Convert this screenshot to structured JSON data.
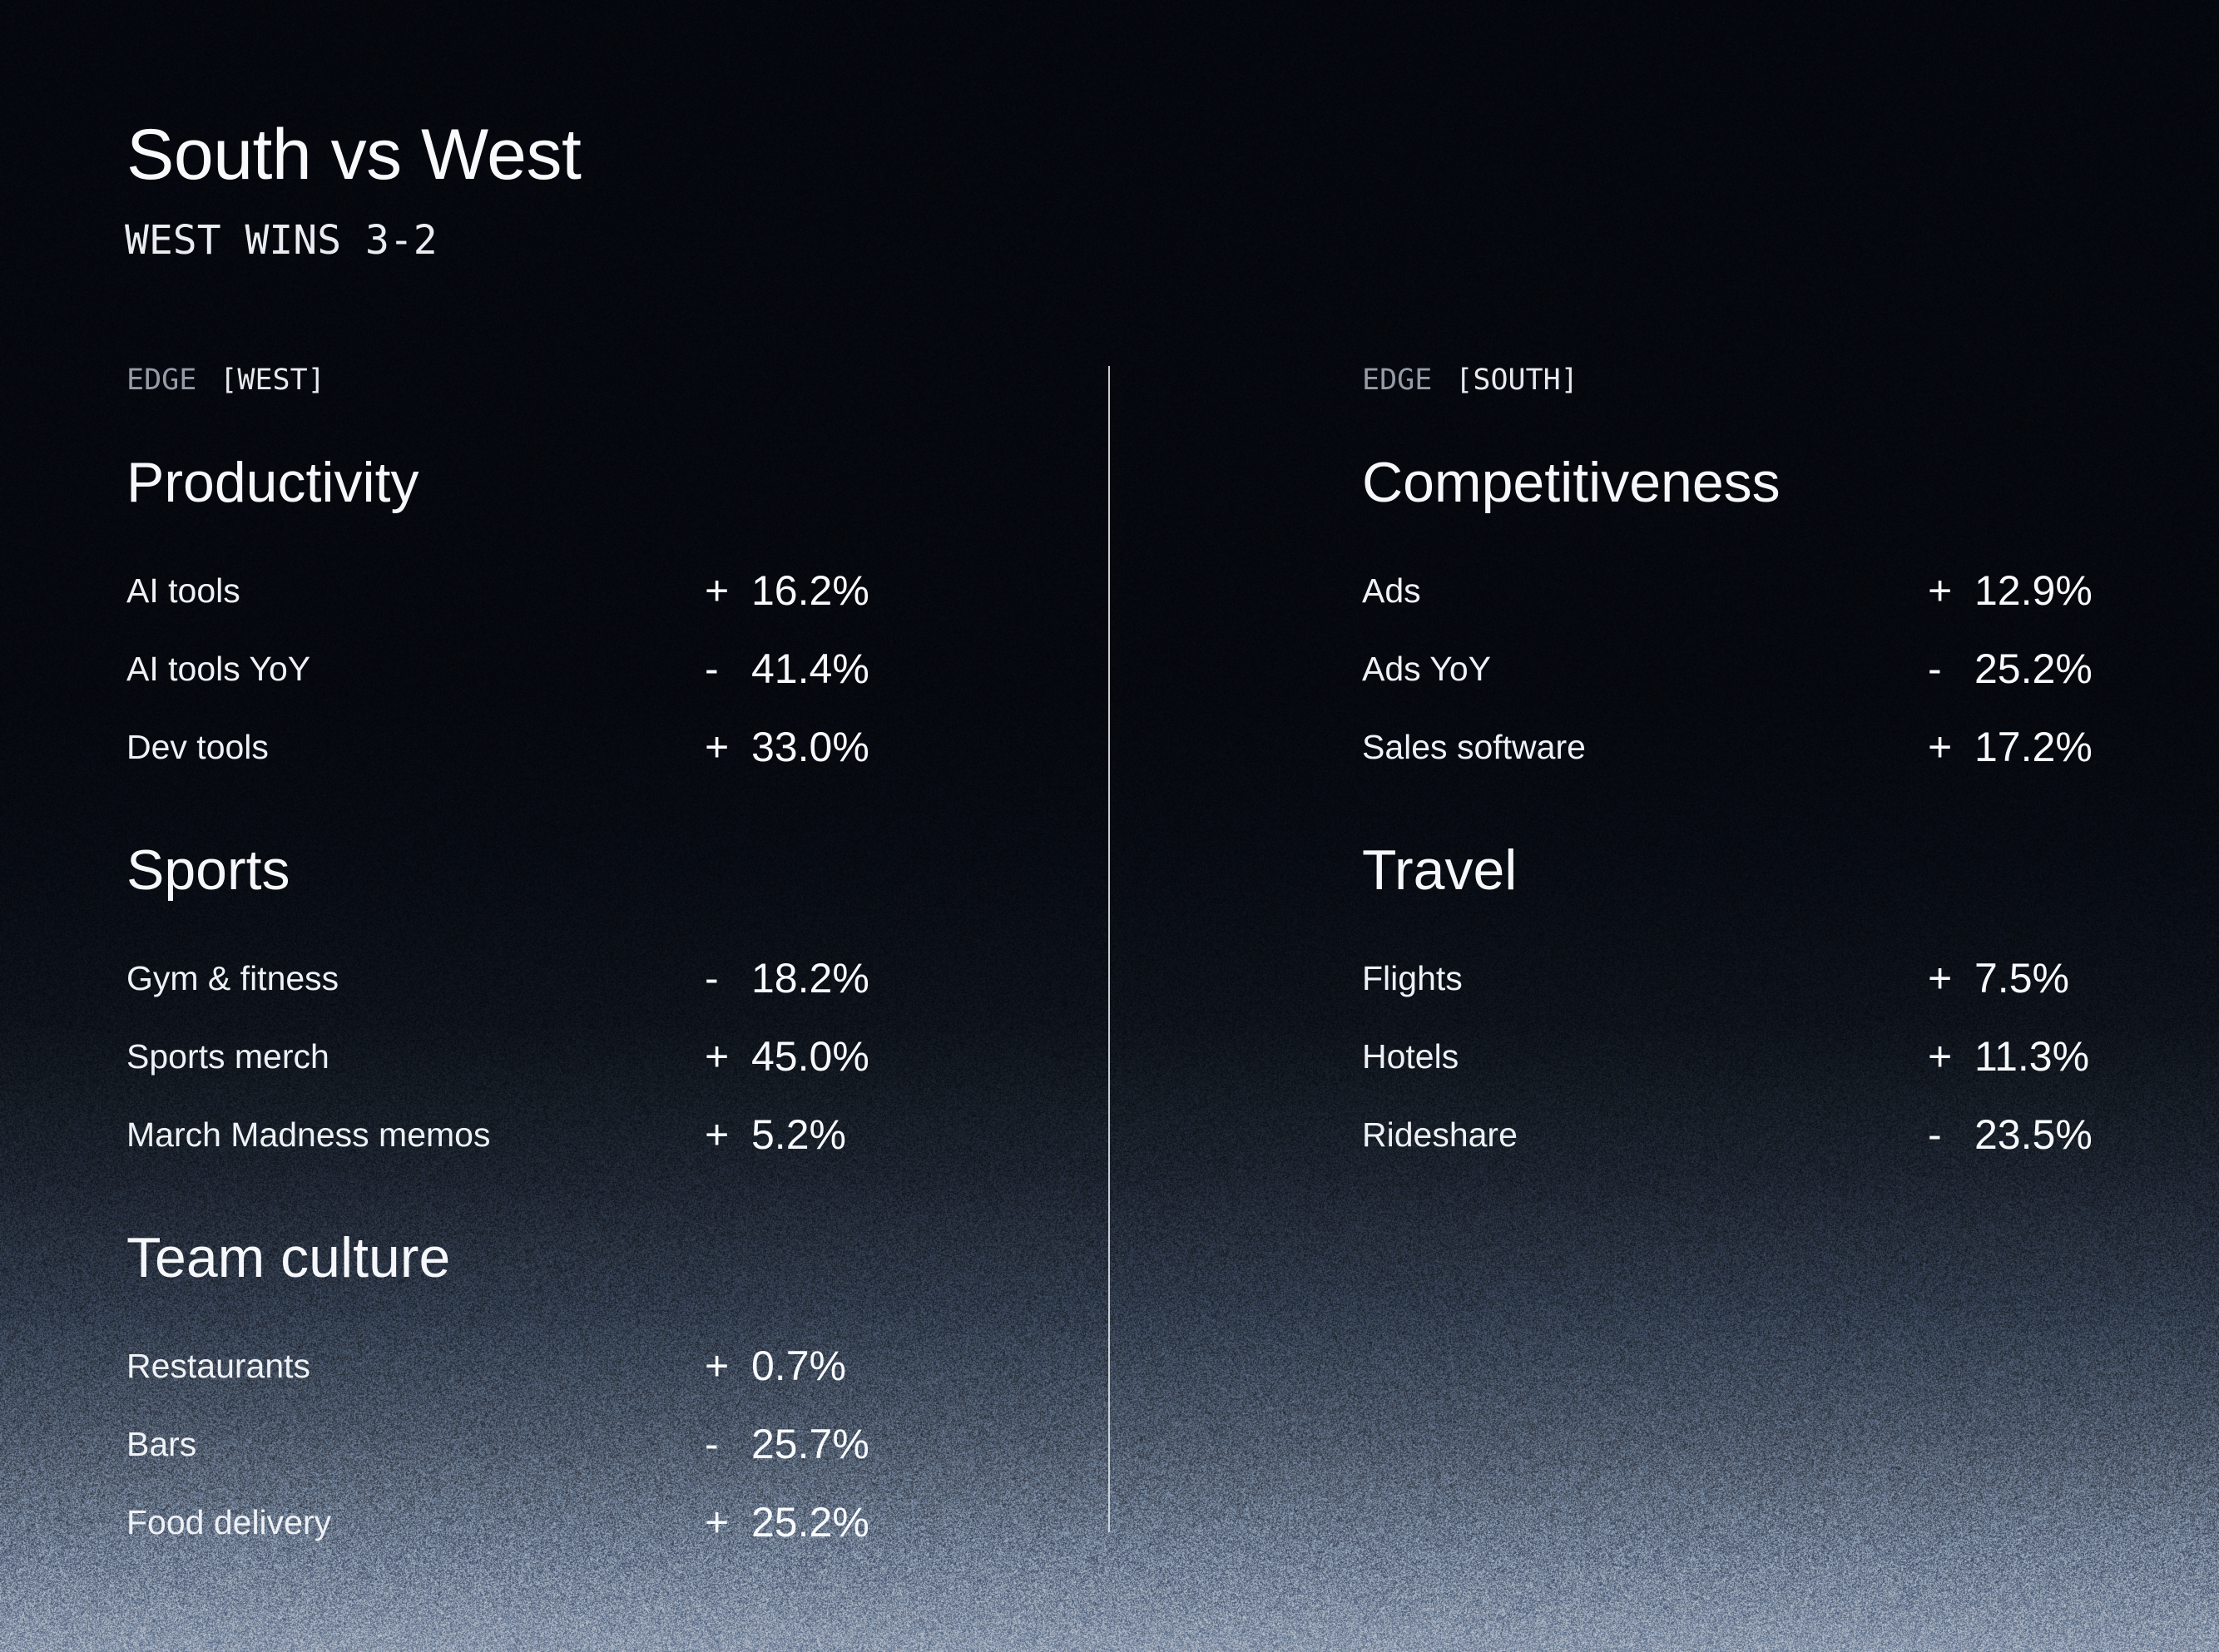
{
  "page": {
    "title": "South vs West",
    "subtitle": "WEST WINS 3-2"
  },
  "colors": {
    "background_top": "#04070d",
    "background_bottom": "#8c99ad",
    "text_primary": "#f5f7fa",
    "text_muted": "#969ca6",
    "divider": "#d9dde1"
  },
  "columns": [
    {
      "edge": {
        "prefix": "EDGE",
        "team": "[WEST]"
      },
      "sections": [
        {
          "heading": "Productivity",
          "rows": [
            {
              "label": "AI tools",
              "sign": "+",
              "value": "16.2%"
            },
            {
              "label": "AI tools YoY",
              "sign": "-",
              "value": "41.4%"
            },
            {
              "label": "Dev tools",
              "sign": "+",
              "value": "33.0%"
            }
          ]
        },
        {
          "heading": "Sports",
          "rows": [
            {
              "label": "Gym & fitness",
              "sign": "-",
              "value": "18.2%"
            },
            {
              "label": "Sports merch",
              "sign": "+",
              "value": "45.0%"
            },
            {
              "label": "March Madness memos",
              "sign": "+",
              "value": "5.2%"
            }
          ]
        },
        {
          "heading": "Team culture",
          "rows": [
            {
              "label": "Restaurants",
              "sign": "+",
              "value": "0.7%"
            },
            {
              "label": "Bars",
              "sign": "-",
              "value": "25.7%"
            },
            {
              "label": "Food delivery",
              "sign": "+",
              "value": "25.2%"
            }
          ]
        }
      ]
    },
    {
      "edge": {
        "prefix": "EDGE",
        "team": "[SOUTH]"
      },
      "sections": [
        {
          "heading": "Competitiveness",
          "rows": [
            {
              "label": "Ads",
              "sign": "+",
              "value": "12.9%"
            },
            {
              "label": "Ads YoY",
              "sign": "-",
              "value": "25.2%"
            },
            {
              "label": "Sales software",
              "sign": "+",
              "value": "17.2%"
            }
          ]
        },
        {
          "heading": "Travel",
          "rows": [
            {
              "label": "Flights",
              "sign": "+",
              "value": "7.5%"
            },
            {
              "label": "Hotels",
              "sign": "+",
              "value": "11.3%"
            },
            {
              "label": "Rideshare",
              "sign": "-",
              "value": "23.5%"
            }
          ]
        }
      ]
    }
  ]
}
